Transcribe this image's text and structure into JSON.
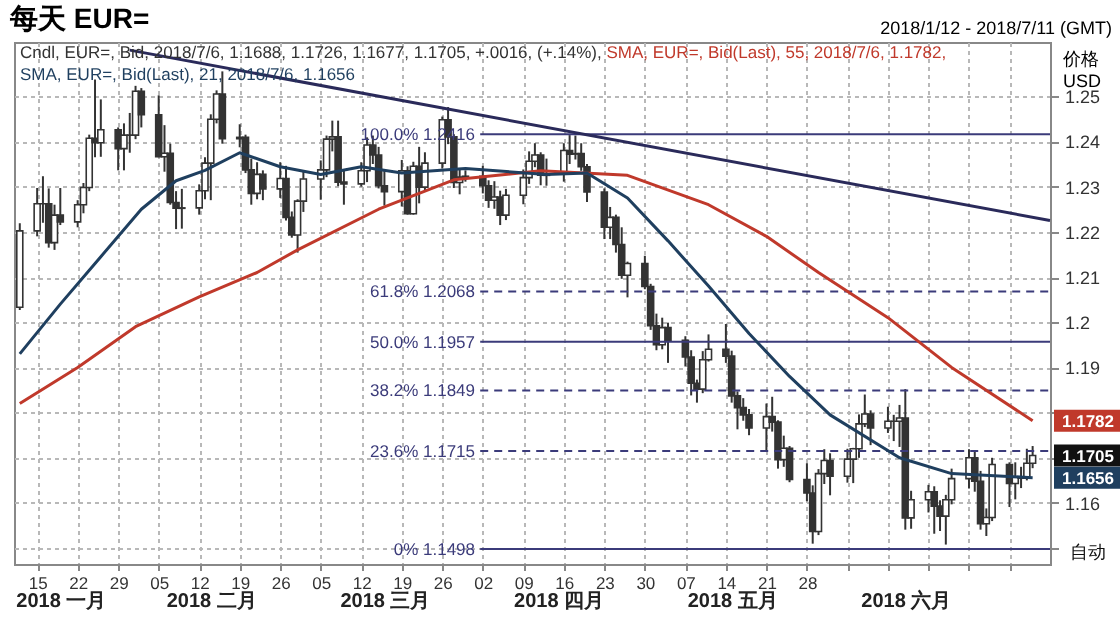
{
  "chart_data": {
    "type": "candlestick",
    "title": "每天 EUR=",
    "subtitle": "2018/1/12 - 2018/7/11 (GMT)",
    "ylabel": "价格\nUSD",
    "series": [
      {
        "name": "Cndl, EUR=, Bid, 2018/7/6, 1.1688, 1.1726, 1.1677, 1.1705, +.0016, (+.14%),",
        "type": "candlestick",
        "color": "#333333",
        "x": [
          "2018-01-12",
          "2018-01-15",
          "2018-01-16",
          "2018-01-17",
          "2018-01-18",
          "2018-01-19",
          "2018-01-22",
          "2018-01-23",
          "2018-01-24",
          "2018-01-25",
          "2018-01-26",
          "2018-01-29",
          "2018-01-30",
          "2018-01-31",
          "2018-02-01",
          "2018-02-02",
          "2018-02-05",
          "2018-02-06",
          "2018-02-07",
          "2018-02-08",
          "2018-02-09",
          "2018-02-12",
          "2018-02-13",
          "2018-02-14",
          "2018-02-15",
          "2018-02-16",
          "2018-02-19",
          "2018-02-20",
          "2018-02-21",
          "2018-02-22",
          "2018-02-23",
          "2018-02-26",
          "2018-02-27",
          "2018-02-28",
          "2018-03-01",
          "2018-03-02",
          "2018-03-05",
          "2018-03-06",
          "2018-03-07",
          "2018-03-08",
          "2018-03-09",
          "2018-03-12",
          "2018-03-13",
          "2018-03-14",
          "2018-03-15",
          "2018-03-16",
          "2018-03-19",
          "2018-03-20",
          "2018-03-21",
          "2018-03-22",
          "2018-03-23",
          "2018-03-26",
          "2018-03-27",
          "2018-03-28",
          "2018-03-29",
          "2018-03-30",
          "2018-04-02",
          "2018-04-03",
          "2018-04-04",
          "2018-04-05",
          "2018-04-06",
          "2018-04-09",
          "2018-04-10",
          "2018-04-11",
          "2018-04-12",
          "2018-04-13",
          "2018-04-16",
          "2018-04-17",
          "2018-04-18",
          "2018-04-19",
          "2018-04-20",
          "2018-04-23",
          "2018-04-24",
          "2018-04-25",
          "2018-04-26",
          "2018-04-27",
          "2018-04-30",
          "2018-05-01",
          "2018-05-02",
          "2018-05-03",
          "2018-05-04",
          "2018-05-07",
          "2018-05-08",
          "2018-05-09",
          "2018-05-10",
          "2018-05-11",
          "2018-05-14",
          "2018-05-15",
          "2018-05-16",
          "2018-05-17",
          "2018-05-18",
          "2018-05-21",
          "2018-05-22",
          "2018-05-23",
          "2018-05-24",
          "2018-05-25",
          "2018-05-28",
          "2018-05-29",
          "2018-05-30",
          "2018-05-31",
          "2018-06-01",
          "2018-06-04",
          "2018-06-05",
          "2018-06-06",
          "2018-06-07",
          "2018-06-08",
          "2018-06-11",
          "2018-06-12",
          "2018-06-13",
          "2018-06-14",
          "2018-06-15",
          "2018-06-18",
          "2018-06-19",
          "2018-06-20",
          "2018-06-21",
          "2018-06-22",
          "2018-06-25",
          "2018-06-26",
          "2018-06-27",
          "2018-06-28",
          "2018-06-29",
          "2018-07-02",
          "2018-07-03",
          "2018-07-04",
          "2018-07-05",
          "2018-07-06"
        ],
        "ohlc": [
          [
            1.2033,
            1.2219,
            1.2027,
            1.2202
          ],
          [
            1.2202,
            1.2297,
            1.219,
            1.2262
          ],
          [
            1.2262,
            1.2323,
            1.222,
            1.2262
          ],
          [
            1.2262,
            1.2296,
            1.2165,
            1.2176
          ],
          [
            1.2176,
            1.226,
            1.216,
            1.2237
          ],
          [
            1.2237,
            1.2297,
            1.2215,
            1.2222
          ],
          [
            1.2222,
            1.227,
            1.221,
            1.226
          ],
          [
            1.226,
            1.2308,
            1.2241,
            1.2298
          ],
          [
            1.2298,
            1.2415,
            1.229,
            1.2407
          ],
          [
            1.2407,
            1.2537,
            1.2365,
            1.2397
          ],
          [
            1.2397,
            1.2493,
            1.2366,
            1.2426
          ],
          [
            1.2426,
            1.2431,
            1.2336,
            1.2384
          ],
          [
            1.2384,
            1.244,
            1.2336,
            1.2414
          ],
          [
            1.2414,
            1.2463,
            1.2375,
            1.2414
          ],
          [
            1.2414,
            1.2523,
            1.2405,
            1.2511
          ],
          [
            1.2511,
            1.2518,
            1.2431,
            1.2459
          ],
          [
            1.2459,
            1.2502,
            1.2365,
            1.2366
          ],
          [
            1.2366,
            1.2436,
            1.2333,
            1.2374
          ],
          [
            1.2374,
            1.2395,
            1.226,
            1.2265
          ],
          [
            1.2265,
            1.229,
            1.2206,
            1.2252
          ],
          [
            1.2252,
            1.2295,
            1.2207,
            1.2253
          ],
          [
            1.2253,
            1.2305,
            1.2238,
            1.2291
          ],
          [
            1.2291,
            1.2365,
            1.2272,
            1.2352
          ],
          [
            1.2352,
            1.246,
            1.227,
            1.2449
          ],
          [
            1.2449,
            1.2513,
            1.244,
            1.2505
          ],
          [
            1.2505,
            1.2555,
            1.2395,
            1.2406
          ],
          [
            1.2406,
            1.2438,
            1.2387,
            1.2409
          ],
          [
            1.2409,
            1.2415,
            1.233,
            1.2337
          ],
          [
            1.2337,
            1.2362,
            1.226,
            1.2285
          ],
          [
            1.2285,
            1.2354,
            1.2272,
            1.2327
          ],
          [
            1.2327,
            1.2336,
            1.227,
            1.2295
          ],
          [
            1.2295,
            1.2354,
            1.2275,
            1.2318
          ],
          [
            1.2318,
            1.2346,
            1.2225,
            1.2232
          ],
          [
            1.2232,
            1.2245,
            1.2187,
            1.2193
          ],
          [
            1.2193,
            1.2272,
            1.2154,
            1.2268
          ],
          [
            1.2268,
            1.2335,
            1.2244,
            1.2317
          ],
          [
            1.2317,
            1.2358,
            1.2271,
            1.2337
          ],
          [
            1.2337,
            1.2413,
            1.2321,
            1.2405
          ],
          [
            1.2405,
            1.2446,
            1.2378,
            1.241
          ],
          [
            1.241,
            1.2446,
            1.2301,
            1.231
          ],
          [
            1.231,
            1.2335,
            1.226,
            1.2306
          ],
          [
            1.2306,
            1.2354,
            1.23,
            1.2335
          ],
          [
            1.2335,
            1.2409,
            1.231,
            1.2392
          ],
          [
            1.2392,
            1.2413,
            1.235,
            1.237
          ],
          [
            1.237,
            1.2388,
            1.2296,
            1.2302
          ],
          [
            1.2302,
            1.2336,
            1.2258,
            1.2289
          ],
          [
            1.2289,
            1.2359,
            1.2256,
            1.2335
          ],
          [
            1.2335,
            1.2345,
            1.2238,
            1.224
          ],
          [
            1.224,
            1.2355,
            1.2238,
            1.2345
          ],
          [
            1.2345,
            1.2388,
            1.2263,
            1.2299
          ],
          [
            1.2299,
            1.2376,
            1.2289,
            1.2352
          ],
          [
            1.2352,
            1.2455,
            1.234,
            1.2448
          ],
          [
            1.2448,
            1.2476,
            1.2394,
            1.241
          ],
          [
            1.241,
            1.2416,
            1.2297,
            1.2309
          ],
          [
            1.2309,
            1.2339,
            1.2283,
            1.2321
          ],
          [
            1.2321,
            1.2336,
            1.2311,
            1.2323
          ],
          [
            1.2323,
            1.2346,
            1.2285,
            1.2302
          ],
          [
            1.2302,
            1.2314,
            1.2253,
            1.227
          ],
          [
            1.227,
            1.2312,
            1.2251,
            1.2277
          ],
          [
            1.2277,
            1.2291,
            1.2215,
            1.2237
          ],
          [
            1.2237,
            1.2295,
            1.2226,
            1.2281
          ],
          [
            1.2281,
            1.2338,
            1.2261,
            1.232
          ],
          [
            1.232,
            1.2378,
            1.2306,
            1.2356
          ],
          [
            1.2356,
            1.2396,
            1.2343,
            1.237
          ],
          [
            1.237,
            1.2376,
            1.2303,
            1.2325
          ],
          [
            1.2325,
            1.2362,
            1.2302,
            1.2328
          ],
          [
            1.2328,
            1.2396,
            1.2311,
            1.238
          ],
          [
            1.238,
            1.2414,
            1.235,
            1.2372
          ],
          [
            1.2372,
            1.2413,
            1.236,
            1.2373
          ],
          [
            1.2373,
            1.2396,
            1.2335,
            1.2344
          ],
          [
            1.2344,
            1.235,
            1.2266,
            1.2288
          ],
          [
            1.2288,
            1.2296,
            1.2184,
            1.221
          ],
          [
            1.221,
            1.2255,
            1.2184,
            1.2232
          ],
          [
            1.2232,
            1.2238,
            1.2154,
            1.2172
          ],
          [
            1.2172,
            1.221,
            1.2096,
            1.2104
          ],
          [
            1.2104,
            1.2134,
            1.2055,
            1.213
          ],
          [
            1.213,
            1.2147,
            1.2073,
            1.2079
          ],
          [
            1.2079,
            1.2085,
            1.1983,
            1.1992
          ],
          [
            1.1992,
            1.2019,
            1.1938,
            1.195
          ],
          [
            1.195,
            1.201,
            1.194,
            1.1988
          ],
          [
            1.1988,
            1.1999,
            1.191,
            1.196
          ],
          [
            1.196,
            1.1969,
            1.1902,
            1.1923
          ],
          [
            1.1923,
            1.1938,
            1.1838,
            1.1865
          ],
          [
            1.1865,
            1.1873,
            1.1822,
            1.1852
          ],
          [
            1.1852,
            1.1936,
            1.1843,
            1.1917
          ],
          [
            1.1917,
            1.1973,
            1.1913,
            1.194
          ],
          [
            1.194,
            1.1996,
            1.191,
            1.1925
          ],
          [
            1.1925,
            1.1937,
            1.1822,
            1.1837
          ],
          [
            1.1837,
            1.1847,
            1.1763,
            1.1811
          ],
          [
            1.1811,
            1.1832,
            1.1782,
            1.1795
          ],
          [
            1.1795,
            1.1808,
            1.175,
            1.1766
          ],
          [
            1.1766,
            1.182,
            1.1717,
            1.1791
          ],
          [
            1.1791,
            1.1835,
            1.1758,
            1.1779
          ],
          [
            1.1779,
            1.1783,
            1.1676,
            1.1696
          ],
          [
            1.1696,
            1.1749,
            1.168,
            1.1721
          ],
          [
            1.1721,
            1.1726,
            1.1646,
            1.1652
          ],
          [
            1.1652,
            1.1688,
            1.1604,
            1.1622
          ],
          [
            1.1622,
            1.1639,
            1.151,
            1.1537
          ],
          [
            1.1537,
            1.1675,
            1.1529,
            1.1665
          ],
          [
            1.1665,
            1.1719,
            1.1642,
            1.1694
          ],
          [
            1.1694,
            1.171,
            1.1617,
            1.1659
          ],
          [
            1.1659,
            1.172,
            1.1645,
            1.1697
          ],
          [
            1.1697,
            1.1722,
            1.1644,
            1.172
          ],
          [
            1.172,
            1.1796,
            1.17,
            1.1775
          ],
          [
            1.1775,
            1.184,
            1.1768,
            1.1797
          ],
          [
            1.1797,
            1.1805,
            1.1728,
            1.1766
          ],
          [
            1.1766,
            1.1813,
            1.1755,
            1.1781
          ],
          [
            1.1781,
            1.1795,
            1.1737,
            1.1781
          ],
          [
            1.1781,
            1.1817,
            1.1724,
            1.1788
          ],
          [
            1.1788,
            1.1852,
            1.1541,
            1.1567
          ],
          [
            1.1567,
            1.1627,
            1.1543,
            1.1607
          ],
          [
            1.1607,
            1.164,
            1.1579,
            1.1625
          ],
          [
            1.1625,
            1.1637,
            1.1532,
            1.1593
          ],
          [
            1.1593,
            1.1606,
            1.1538,
            1.1571
          ],
          [
            1.1571,
            1.1618,
            1.1508,
            1.1607
          ],
          [
            1.1607,
            1.1676,
            1.1597,
            1.1654
          ],
          [
            1.1654,
            1.1719,
            1.1632,
            1.17
          ],
          [
            1.17,
            1.1716,
            1.1625,
            1.1648
          ],
          [
            1.1648,
            1.1671,
            1.1541,
            1.1554
          ],
          [
            1.1554,
            1.1588,
            1.1527,
            1.1568
          ],
          [
            1.1568,
            1.17,
            1.156,
            1.1685
          ],
          [
            1.1685,
            1.169,
            1.1591,
            1.1643
          ],
          [
            1.1643,
            1.169,
            1.1608,
            1.1657
          ],
          [
            1.1657,
            1.168,
            1.1633,
            1.1655
          ],
          [
            1.1655,
            1.172,
            1.165,
            1.1688
          ],
          [
            1.1688,
            1.1726,
            1.1677,
            1.1705
          ]
        ]
      },
      {
        "name": "SMA, EUR=, Bid(Last), 55, 2018/7/6, 1.1782,",
        "type": "line",
        "color": "#c0392b",
        "x": [
          "2018-01-12",
          "2018-01-22",
          "2018-02-01",
          "2018-02-12",
          "2018-02-22",
          "2018-03-01",
          "2018-03-15",
          "2018-03-28",
          "2018-04-12",
          "2018-04-27",
          "2018-05-11",
          "2018-05-21",
          "2018-05-30",
          "2018-06-11",
          "2018-06-22",
          "2018-07-06"
        ],
        "values": [
          1.182,
          1.19,
          1.199,
          1.2056,
          1.211,
          1.216,
          1.225,
          1.2315,
          1.2335,
          1.2325,
          1.226,
          1.219,
          1.211,
          1.201,
          1.19,
          1.1782
        ]
      },
      {
        "name": "SMA, EUR=, Bid(Last), 21, 2018/7/6, 1.1656",
        "type": "line",
        "color": "#1f3f5f",
        "x": [
          "2018-01-12",
          "2018-01-19",
          "2018-01-26",
          "2018-02-02",
          "2018-02-08",
          "2018-02-13",
          "2018-02-19",
          "2018-02-26",
          "2018-03-05",
          "2018-03-12",
          "2018-03-19",
          "2018-03-30",
          "2018-04-13",
          "2018-04-20",
          "2018-04-27",
          "2018-05-04",
          "2018-05-11",
          "2018-05-18",
          "2018-05-25",
          "2018-06-01",
          "2018-06-13",
          "2018-06-22",
          "2018-07-06"
        ],
        "values": [
          1.193,
          1.204,
          1.2145,
          1.225,
          1.2313,
          1.2336,
          1.2375,
          1.2344,
          1.2327,
          1.2344,
          1.233,
          1.234,
          1.2327,
          1.233,
          1.2275,
          1.218,
          1.208,
          1.1975,
          1.188,
          1.1795,
          1.17,
          1.1665,
          1.1656
        ]
      },
      {
        "type": "line",
        "color": "#2a2a5a",
        "x": [
          "2018-01-31",
          "2018-07-09"
        ],
        "values": [
          1.2602,
          1.2225
        ]
      }
    ],
    "xlim": [
      "2018-01-11",
      "2018-07-09"
    ],
    "xticks": [
      {
        "value": "2018-01-15",
        "label": "15"
      },
      {
        "value": "2018-01-22",
        "label": "22"
      },
      {
        "value": "2018-01-29",
        "label": "29"
      },
      {
        "value": "2018-02-05",
        "label": "05"
      },
      {
        "value": "2018-02-12",
        "label": "12"
      },
      {
        "value": "2018-02-19",
        "label": "19"
      },
      {
        "value": "2018-02-26",
        "label": "26"
      },
      {
        "value": "2018-03-05",
        "label": "05"
      },
      {
        "value": "2018-03-12",
        "label": "12"
      },
      {
        "value": "2018-03-19",
        "label": "19"
      },
      {
        "value": "2018-03-26",
        "label": "26"
      },
      {
        "value": "2018-04-02",
        "label": "02"
      },
      {
        "value": "2018-04-09",
        "label": "09"
      },
      {
        "value": "2018-04-16",
        "label": "16"
      },
      {
        "value": "2018-04-23",
        "label": "23"
      },
      {
        "value": "2018-04-30",
        "label": "30"
      },
      {
        "value": "2018-05-07",
        "label": "07"
      },
      {
        "value": "2018-05-14",
        "label": "14"
      },
      {
        "value": "2018-05-21",
        "label": "21"
      },
      {
        "value": "2018-05-28",
        "label": "28"
      },
      {
        "value": "2018-06-04",
        "label": null
      },
      {
        "value": "2018-06-11",
        "label": null
      },
      {
        "value": "2018-06-18",
        "label": null
      },
      {
        "value": "2018-06-25",
        "label": null
      },
      {
        "value": "2018-07-02",
        "label": null
      }
    ],
    "x2lim": [
      "2018-01-11",
      "2018-07-09"
    ],
    "x2ticks": [
      {
        "value": "2018-01-19",
        "label": "2018 一月"
      },
      {
        "value": "2018-02-14",
        "label": "2018 二月"
      },
      {
        "value": "2018-03-16",
        "label": "2018 三月"
      },
      {
        "value": "2018-04-15",
        "label": "2018 四月"
      },
      {
        "value": "2018-05-15",
        "label": "2018 五月"
      },
      {
        "value": "2018-06-14",
        "label": "2018 六月"
      }
    ],
    "ylim": [
      1.1465,
      1.262
    ],
    "yticks": [
      {
        "value": 1.15,
        "label": null
      },
      1.16,
      {
        "value": 1.17,
        "label": null
      },
      {
        "value": 1.18,
        "label": null
      },
      1.19,
      1.2,
      1.21,
      1.22,
      1.23,
      1.24,
      1.25
    ],
    "ref_lines": [
      {
        "axis": "y",
        "value": 1.2416,
        "label": "100.0%  1.2416",
        "color": "#3b3b7a",
        "line_style": "solid"
      },
      {
        "axis": "y",
        "value": 1.2068,
        "label": "61.8%  1.2068",
        "color": "#3b3b7a",
        "line_style": "dashed"
      },
      {
        "axis": "y",
        "value": 1.1957,
        "label": "50.0%  1.1957",
        "color": "#3b3b7a",
        "line_style": "solid"
      },
      {
        "axis": "y",
        "value": 1.1849,
        "label": "38.2%  1.1849",
        "color": "#3b3b7a",
        "line_style": "dashed"
      },
      {
        "axis": "y",
        "value": 1.1715,
        "label": "23.6%  1.1715",
        "color": "#3b3b7a",
        "line_style": "dashed"
      },
      {
        "axis": "y",
        "value": 1.1498,
        "label": "0%  1.1498",
        "color": "#3b3b7a",
        "line_style": "solid"
      }
    ],
    "annotations": [
      {
        "text": "1.1782",
        "x": "2018-07-06",
        "y": 1.1782
      },
      {
        "text": "1.1705",
        "x": "2018-07-06",
        "y": 1.1705
      },
      {
        "text": "1.1656",
        "x": "2018-07-06",
        "y": 1.1656
      },
      "自动"
    ],
    "grid": true,
    "legend": "top left"
  }
}
